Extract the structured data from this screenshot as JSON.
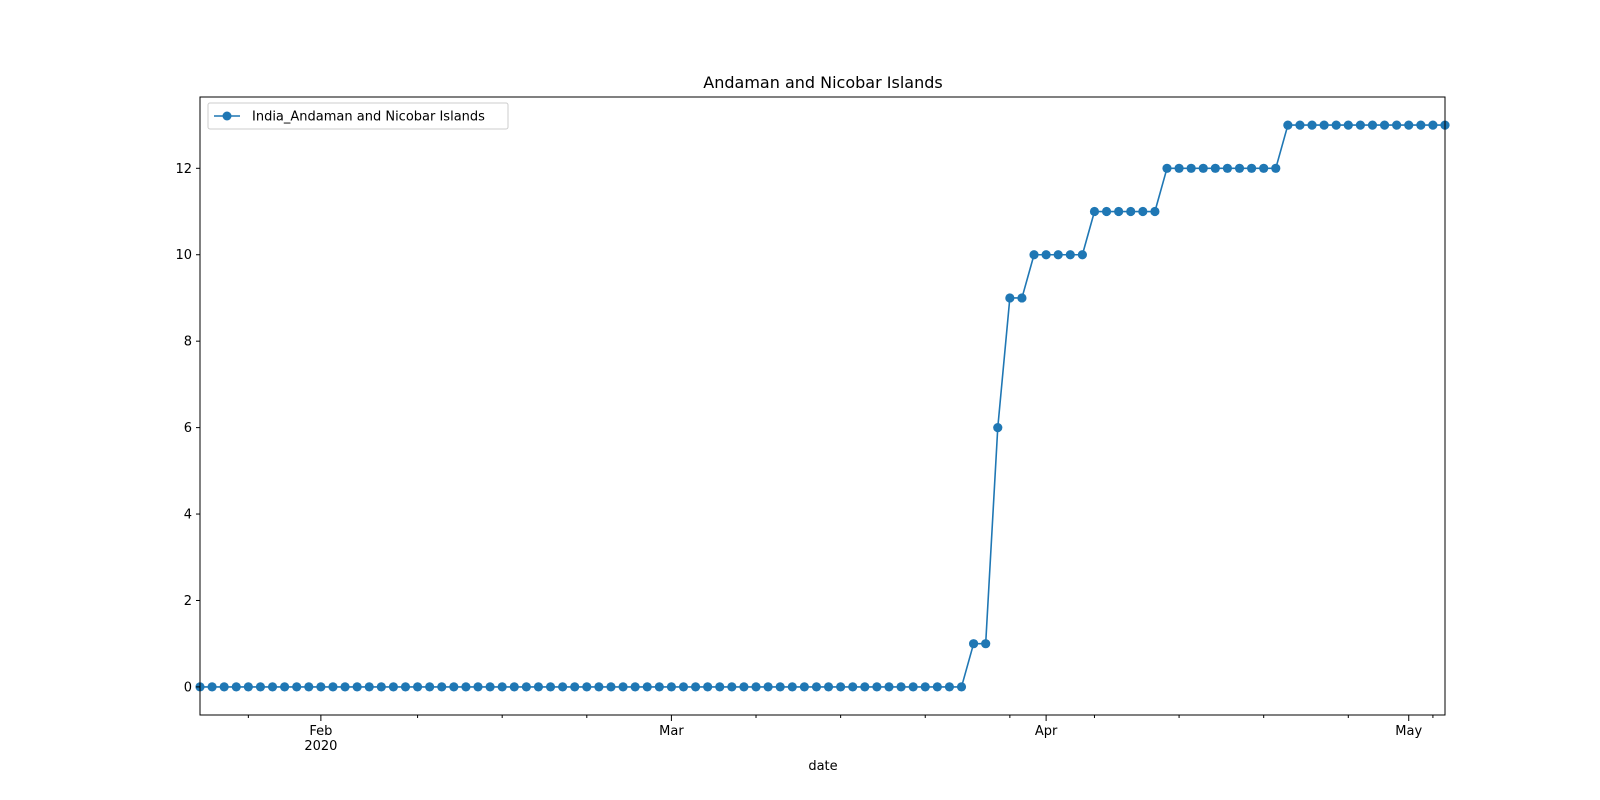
{
  "chart_data": {
    "type": "line",
    "title": "Andaman and Nicobar Islands",
    "xlabel": "date",
    "ylabel": "",
    "x_start": "2020-01-22",
    "x_end": "2020-05-04",
    "xlim": [
      "2020-01-22",
      "2020-05-04"
    ],
    "ylim": [
      -0.65,
      13.65
    ],
    "y_ticks": [
      0,
      2,
      4,
      6,
      8,
      10,
      12
    ],
    "x_major_ticks": [
      {
        "date": "2020-02-01",
        "label": "Feb",
        "sublabel": "2020"
      },
      {
        "date": "2020-03-01",
        "label": "Mar",
        "sublabel": ""
      },
      {
        "date": "2020-04-01",
        "label": "Apr",
        "sublabel": ""
      },
      {
        "date": "2020-05-01",
        "label": "May",
        "sublabel": ""
      }
    ],
    "x_minor_tick_dates": [
      "2020-01-26",
      "2020-02-09",
      "2020-02-16",
      "2020-02-23",
      "2020-03-08",
      "2020-03-15",
      "2020-03-22",
      "2020-03-29",
      "2020-04-05",
      "2020-04-12",
      "2020-04-19",
      "2020-04-26",
      "2020-05-03"
    ],
    "grid": false,
    "legend_position": "upper-left",
    "series": [
      {
        "name": "India_Andaman and Nicobar Islands",
        "color": "#1f77b4",
        "marker": "circle",
        "values": [
          0,
          0,
          0,
          0,
          0,
          0,
          0,
          0,
          0,
          0,
          0,
          0,
          0,
          0,
          0,
          0,
          0,
          0,
          0,
          0,
          0,
          0,
          0,
          0,
          0,
          0,
          0,
          0,
          0,
          0,
          0,
          0,
          0,
          0,
          0,
          0,
          0,
          0,
          0,
          0,
          0,
          0,
          0,
          0,
          0,
          0,
          0,
          0,
          0,
          0,
          0,
          0,
          0,
          0,
          0,
          0,
          0,
          0,
          0,
          0,
          0,
          0,
          0,
          0,
          1,
          1,
          6,
          9,
          9,
          10,
          10,
          10,
          10,
          10,
          11,
          11,
          11,
          11,
          11,
          11,
          12,
          12,
          12,
          12,
          12,
          12,
          12,
          12,
          12,
          12,
          13,
          13,
          13,
          13,
          13,
          13,
          13,
          13,
          13,
          13,
          13,
          13,
          13,
          13
        ]
      }
    ]
  }
}
